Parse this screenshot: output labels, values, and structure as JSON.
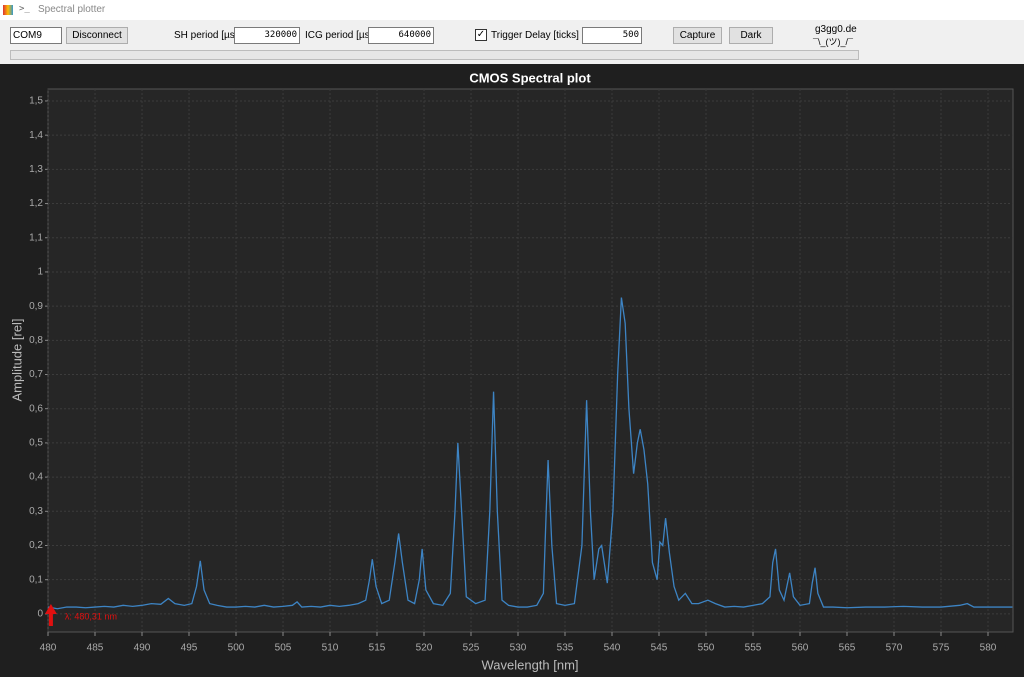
{
  "window": {
    "title": "Spectral plotter"
  },
  "toolbar": {
    "port": "COM9",
    "disconnect": "Disconnect",
    "sh_label": "SH period [µs]",
    "sh_value": "320000",
    "icg_label": "ICG period [µs]",
    "icg_value": "640000",
    "trigger": "Trigger",
    "delay_label": "Delay [ticks]",
    "delay_value": "500",
    "capture": "Capture",
    "dark": "Dark",
    "credit": "g3gg0.de",
    "shrug": "¯\\_(ツ)_/¯"
  },
  "chart_data": {
    "type": "line",
    "title": "CMOS Spectral plot",
    "x_label": "Wavelength [nm]",
    "y_label": "Amplitude [rel]",
    "color": "#3d84c4",
    "grid": true,
    "xlim": [
      480,
      582.66
    ],
    "ylim": [
      -0.053,
      1.535
    ],
    "xticks": [
      480,
      485,
      490,
      495,
      500,
      505,
      510,
      515,
      520,
      525,
      530,
      535,
      540,
      545,
      550,
      555,
      560,
      565,
      570,
      575,
      580
    ],
    "yticks": [
      0,
      {
        "value": 0.1,
        "label": "0,1"
      },
      {
        "value": 0.2,
        "label": "0,2"
      },
      {
        "value": 0.3,
        "label": "0,3"
      },
      {
        "value": 0.4,
        "label": "0,4"
      },
      {
        "value": 0.5,
        "label": "0,5"
      },
      {
        "value": 0.6,
        "label": "0,6"
      },
      {
        "value": 0.7,
        "label": "0,7"
      },
      {
        "value": 0.8,
        "label": "0,8"
      },
      {
        "value": 0.9,
        "label": "0,9"
      },
      1,
      {
        "value": 1.1,
        "label": "1,1"
      },
      {
        "value": 1.2,
        "label": "1,2"
      },
      {
        "value": 1.3,
        "label": "1,3"
      },
      {
        "value": 1.4,
        "label": "1,4"
      },
      {
        "value": 1.5,
        "label": "1,5"
      }
    ],
    "x": [
      480,
      481,
      482,
      483,
      484,
      485,
      486,
      487,
      488,
      489,
      490,
      491,
      492,
      492.8,
      493.5,
      494.5,
      495.3,
      495.8,
      496.2,
      496.6,
      497.2,
      498,
      499,
      500,
      501,
      502,
      503,
      504,
      505,
      506,
      506.5,
      507,
      508,
      509,
      510,
      511,
      512,
      513,
      513.8,
      514.2,
      514.5,
      514.9,
      515.5,
      516.3,
      516.9,
      517.3,
      517.7,
      518.3,
      519,
      519.5,
      519.8,
      520.2,
      521,
      522,
      522.8,
      523.3,
      523.6,
      524,
      524.5,
      525.5,
      526.5,
      527,
      527.4,
      527.8,
      528.3,
      529,
      530,
      531,
      532,
      532.7,
      533,
      533.2,
      533.6,
      534.1,
      535,
      536,
      536.8,
      537.3,
      537.7,
      538.1,
      538.6,
      538.9,
      539.5,
      540.1,
      540.6,
      541,
      541.4,
      541.8,
      542.3,
      542.7,
      543,
      543.4,
      543.8,
      544.3,
      544.8,
      545.1,
      545.4,
      545.7,
      546.1,
      546.6,
      547.1,
      547.8,
      548.5,
      549.2,
      550.2,
      551,
      552,
      553,
      554,
      555,
      556,
      556.8,
      557.1,
      557.4,
      557.8,
      558.3,
      558.9,
      559.3,
      560,
      561,
      561.3,
      561.6,
      561.9,
      562.5,
      563.5,
      565,
      567,
      569,
      571,
      573,
      575,
      577,
      577.8,
      578.5,
      580,
      582,
      582.6
    ],
    "values": [
      0.02,
      0.015,
      0.02,
      0.02,
      0.018,
      0.02,
      0.022,
      0.02,
      0.025,
      0.022,
      0.025,
      0.03,
      0.028,
      0.045,
      0.03,
      0.025,
      0.03,
      0.08,
      0.155,
      0.07,
      0.03,
      0.025,
      0.02,
      0.02,
      0.022,
      0.02,
      0.025,
      0.02,
      0.022,
      0.025,
      0.035,
      0.02,
      0.022,
      0.02,
      0.025,
      0.022,
      0.025,
      0.03,
      0.04,
      0.1,
      0.16,
      0.08,
      0.03,
      0.04,
      0.15,
      0.235,
      0.15,
      0.04,
      0.03,
      0.1,
      0.19,
      0.07,
      0.03,
      0.025,
      0.06,
      0.3,
      0.5,
      0.3,
      0.05,
      0.03,
      0.04,
      0.3,
      0.65,
      0.3,
      0.04,
      0.025,
      0.02,
      0.02,
      0.025,
      0.06,
      0.3,
      0.45,
      0.2,
      0.03,
      0.025,
      0.03,
      0.2,
      0.625,
      0.3,
      0.1,
      0.19,
      0.2,
      0.09,
      0.3,
      0.7,
      0.925,
      0.85,
      0.6,
      0.41,
      0.5,
      0.54,
      0.48,
      0.38,
      0.15,
      0.1,
      0.21,
      0.2,
      0.28,
      0.18,
      0.08,
      0.04,
      0.06,
      0.03,
      0.03,
      0.04,
      0.03,
      0.02,
      0.022,
      0.02,
      0.025,
      0.03,
      0.05,
      0.15,
      0.19,
      0.07,
      0.04,
      0.12,
      0.05,
      0.025,
      0.03,
      0.09,
      0.135,
      0.06,
      0.02,
      0.02,
      0.018,
      0.02,
      0.02,
      0.022,
      0.02,
      0.02,
      0.025,
      0.03,
      0.02,
      0.02,
      0.02,
      0.02
    ],
    "annotation": {
      "text": "λ: 480,31 nm",
      "x": 480.31,
      "color": "#e01010"
    }
  }
}
